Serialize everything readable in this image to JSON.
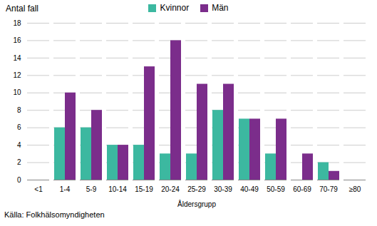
{
  "chart_data": {
    "type": "bar",
    "categories": [
      "<1",
      "1-4",
      "5-9",
      "10-14",
      "15-19",
      "20-24",
      "25-29",
      "30-39",
      "40-49",
      "50-59",
      "60-69",
      "70-79",
      "≥80"
    ],
    "series": [
      {
        "name": "Kvinnor",
        "color": "#3cb8a0",
        "values": [
          0,
          6,
          6,
          4,
          4,
          3,
          3,
          8,
          7,
          3,
          0,
          2,
          0
        ]
      },
      {
        "name": "Män",
        "color": "#7b2d8b",
        "values": [
          0,
          10,
          8,
          4,
          13,
          16,
          11,
          11,
          7,
          7,
          3,
          1,
          0
        ]
      }
    ],
    "xlabel": "Åldersgrupp",
    "ylabel": "Antal fall",
    "source": "Källa: Folkhälsomyndigheten",
    "ylim": [
      0,
      18
    ],
    "yticks": [
      0,
      2,
      4,
      6,
      8,
      10,
      12,
      14,
      16,
      18
    ],
    "grid": true,
    "legend": "top"
  }
}
